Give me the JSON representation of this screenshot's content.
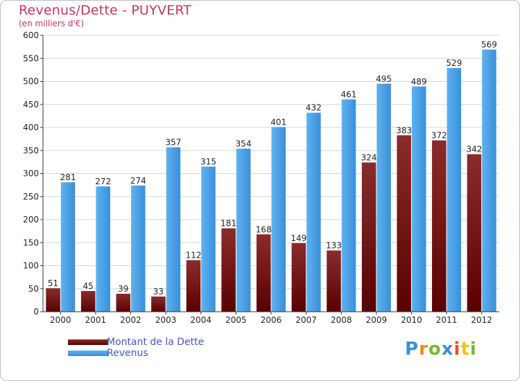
{
  "header": {
    "title": "Revenus/Dette - PUYVERT",
    "subtitle": "(en milliers d'€)"
  },
  "legend": {
    "items": [
      {
        "label": "Montant de la Dette",
        "color": "#6b0a0a"
      },
      {
        "label": "Revenus",
        "color": "#3d9be8"
      }
    ]
  },
  "logo": {
    "letters": [
      "P",
      "r",
      "o",
      "x",
      "i",
      "t",
      "i"
    ],
    "colors": [
      "#3d8fd6",
      "#f08a1c",
      "#7ab834",
      "#3d8fd6",
      "#e84b2c",
      "#f0c419",
      "#7ab834"
    ]
  },
  "chart_data": {
    "type": "bar",
    "title": "Revenus/Dette - PUYVERT",
    "ylabel": "(en milliers d'€)",
    "xlabel": "",
    "ylim": [
      0,
      600
    ],
    "yticks": [
      0,
      50,
      100,
      150,
      200,
      250,
      300,
      350,
      400,
      450,
      500,
      550,
      600
    ],
    "grid": true,
    "categories": [
      "2000",
      "2001",
      "2002",
      "2003",
      "2004",
      "2005",
      "2006",
      "2007",
      "2008",
      "2009",
      "2010",
      "2011",
      "2012"
    ],
    "series": [
      {
        "name": "Montant de la Dette",
        "color": "#6b0a0a",
        "values": [
          51,
          45,
          39,
          33,
          112,
          181,
          168,
          149,
          133,
          324,
          383,
          372,
          342
        ]
      },
      {
        "name": "Revenus",
        "color": "#3d9be8",
        "values": [
          281,
          272,
          274,
          357,
          315,
          354,
          401,
          432,
          461,
          495,
          489,
          529,
          569
        ]
      }
    ]
  }
}
